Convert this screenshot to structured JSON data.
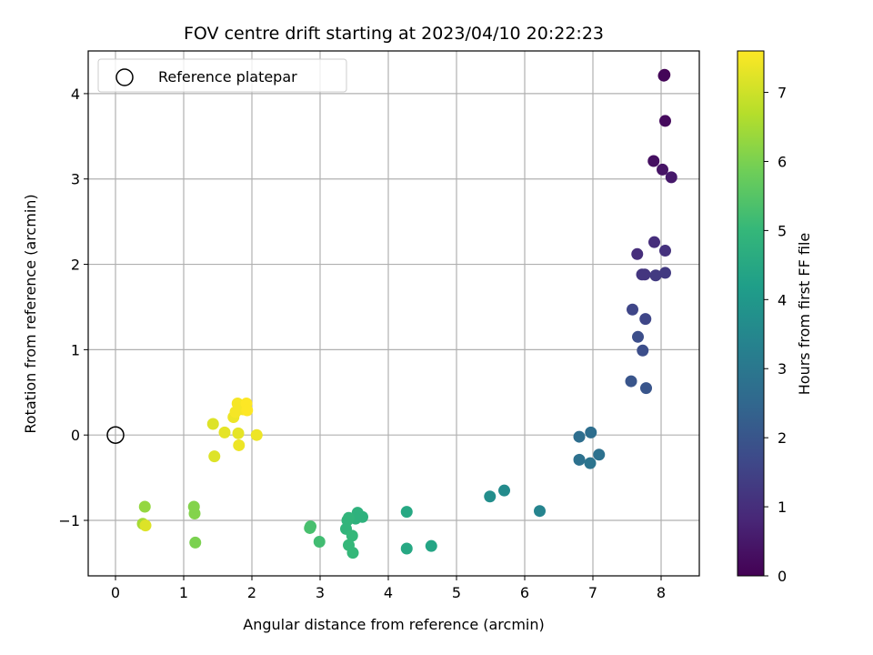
{
  "chart_data": {
    "type": "scatter",
    "title": "FOV centre drift starting at 2023/04/10 20:22:23",
    "xlabel": "Angular distance from reference (arcmin)",
    "ylabel": "Rotation from reference (arcmin)",
    "xlim": [
      -0.4,
      8.56
    ],
    "ylim": [
      -1.65,
      4.5
    ],
    "xticks": [
      0,
      1,
      2,
      3,
      4,
      5,
      6,
      7,
      8
    ],
    "yticks": [
      -1,
      0,
      1,
      2,
      3,
      4
    ],
    "grid": true,
    "legend": {
      "placement": "top-left",
      "entries": [
        "Reference platepar"
      ]
    },
    "reference_point": {
      "x": 0,
      "y": 0,
      "marker": "open-circle"
    },
    "colorbar": {
      "label": "Hours from first FF file",
      "range": [
        0,
        7.6
      ],
      "ticks": [
        0,
        1,
        2,
        3,
        4,
        5,
        6,
        7
      ],
      "colormap": "viridis"
    },
    "series": [
      {
        "points": [
          {
            "x": 8.05,
            "y": 4.22,
            "c": 0.0
          },
          {
            "x": 8.04,
            "y": 4.21,
            "c": 0.1
          },
          {
            "x": 8.06,
            "y": 3.68,
            "c": 0.2
          },
          {
            "x": 7.89,
            "y": 3.21,
            "c": 0.3
          },
          {
            "x": 8.02,
            "y": 3.11,
            "c": 0.4
          },
          {
            "x": 8.15,
            "y": 3.02,
            "c": 0.5
          },
          {
            "x": 7.9,
            "y": 2.26,
            "c": 1.0
          },
          {
            "x": 7.65,
            "y": 2.12,
            "c": 1.0
          },
          {
            "x": 8.06,
            "y": 2.16,
            "c": 1.1
          },
          {
            "x": 7.72,
            "y": 1.88,
            "c": 1.2
          },
          {
            "x": 7.76,
            "y": 1.88,
            "c": 1.2
          },
          {
            "x": 7.92,
            "y": 1.87,
            "c": 1.3
          },
          {
            "x": 8.06,
            "y": 1.9,
            "c": 1.3
          },
          {
            "x": 7.58,
            "y": 1.47,
            "c": 1.6
          },
          {
            "x": 7.77,
            "y": 1.36,
            "c": 1.6
          },
          {
            "x": 7.66,
            "y": 1.15,
            "c": 1.8
          },
          {
            "x": 7.73,
            "y": 0.99,
            "c": 1.8
          },
          {
            "x": 7.56,
            "y": 0.63,
            "c": 2.0
          },
          {
            "x": 7.78,
            "y": 0.55,
            "c": 2.0
          },
          {
            "x": 6.8,
            "y": -0.02,
            "c": 2.7
          },
          {
            "x": 6.97,
            "y": 0.03,
            "c": 2.7
          },
          {
            "x": 7.09,
            "y": -0.23,
            "c": 2.8
          },
          {
            "x": 6.8,
            "y": -0.29,
            "c": 2.8
          },
          {
            "x": 6.96,
            "y": -0.33,
            "c": 2.9
          },
          {
            "x": 6.22,
            "y": -0.89,
            "c": 3.4
          },
          {
            "x": 5.7,
            "y": -0.65,
            "c": 3.6
          },
          {
            "x": 5.49,
            "y": -0.72,
            "c": 3.7
          },
          {
            "x": 4.63,
            "y": -1.3,
            "c": 4.4
          },
          {
            "x": 4.27,
            "y": -0.9,
            "c": 4.5
          },
          {
            "x": 4.27,
            "y": -1.33,
            "c": 4.5
          },
          {
            "x": 3.62,
            "y": -0.96,
            "c": 4.8
          },
          {
            "x": 3.55,
            "y": -0.91,
            "c": 4.8
          },
          {
            "x": 3.52,
            "y": -0.98,
            "c": 4.8
          },
          {
            "x": 3.42,
            "y": -0.97,
            "c": 4.9
          },
          {
            "x": 3.4,
            "y": -1.0,
            "c": 4.9
          },
          {
            "x": 3.38,
            "y": -1.1,
            "c": 4.9
          },
          {
            "x": 3.47,
            "y": -1.18,
            "c": 5.0
          },
          {
            "x": 3.42,
            "y": -1.29,
            "c": 5.0
          },
          {
            "x": 3.48,
            "y": -1.38,
            "c": 5.0
          },
          {
            "x": 2.99,
            "y": -1.25,
            "c": 5.2
          },
          {
            "x": 2.86,
            "y": -1.07,
            "c": 5.3
          },
          {
            "x": 2.85,
            "y": -1.09,
            "c": 5.3
          },
          {
            "x": 1.17,
            "y": -1.26,
            "c": 6.0
          },
          {
            "x": 1.16,
            "y": -0.92,
            "c": 6.1
          },
          {
            "x": 1.15,
            "y": -0.84,
            "c": 6.1
          },
          {
            "x": 0.43,
            "y": -0.84,
            "c": 6.3
          },
          {
            "x": 0.4,
            "y": -1.04,
            "c": 6.5
          },
          {
            "x": 0.44,
            "y": -1.06,
            "c": 7.2
          },
          {
            "x": 1.45,
            "y": -0.25,
            "c": 7.2
          },
          {
            "x": 1.43,
            "y": 0.13,
            "c": 7.2
          },
          {
            "x": 1.6,
            "y": 0.03,
            "c": 7.3
          },
          {
            "x": 1.8,
            "y": 0.02,
            "c": 7.3
          },
          {
            "x": 1.81,
            "y": -0.12,
            "c": 7.4
          },
          {
            "x": 2.07,
            "y": 0.0,
            "c": 7.4
          },
          {
            "x": 1.73,
            "y": 0.21,
            "c": 7.4
          },
          {
            "x": 1.76,
            "y": 0.27,
            "c": 7.5
          },
          {
            "x": 1.79,
            "y": 0.37,
            "c": 7.5
          },
          {
            "x": 1.87,
            "y": 0.3,
            "c": 7.5
          },
          {
            "x": 1.92,
            "y": 0.37,
            "c": 7.6
          },
          {
            "x": 1.93,
            "y": 0.29,
            "c": 7.6
          }
        ]
      }
    ]
  }
}
